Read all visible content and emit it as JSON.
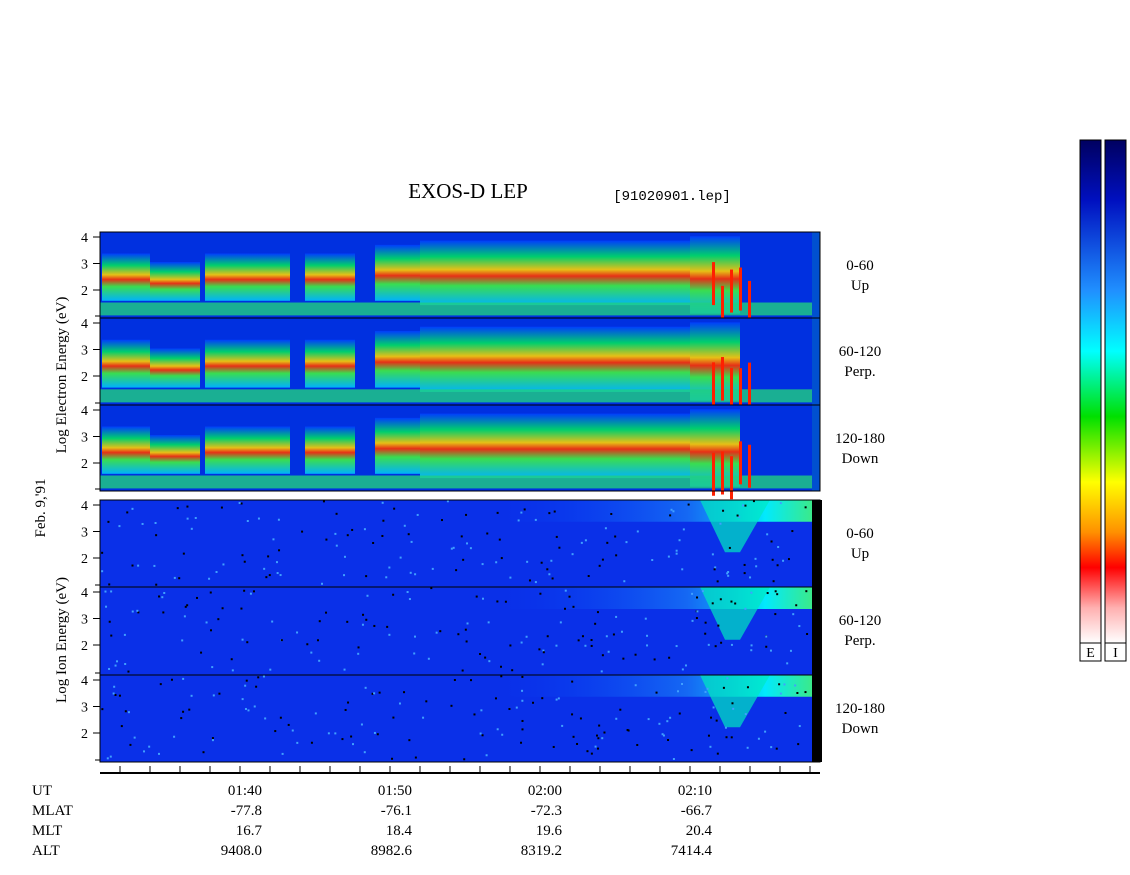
{
  "title": "EXOS-D LEP",
  "file": "[91020901.lep]",
  "date_label": "Feb. 9,'91",
  "electron_axis_label": "Log Electron Energy (eV)",
  "ion_axis_label": "Log Ion Energy (eV)",
  "panels": [
    {
      "species": "electron",
      "yticks": [
        "4",
        "3",
        "2"
      ],
      "angle": "0-60",
      "direction": "Up"
    },
    {
      "species": "electron",
      "yticks": [
        "4",
        "3",
        "2"
      ],
      "angle": "60-120",
      "direction": "Perp."
    },
    {
      "species": "electron",
      "yticks": [
        "4",
        "3",
        "2"
      ],
      "angle": "120-180",
      "direction": "Down"
    },
    {
      "species": "ion",
      "yticks": [
        "4",
        "3",
        "2"
      ],
      "angle": "0-60",
      "direction": "Up"
    },
    {
      "species": "ion",
      "yticks": [
        "4",
        "3",
        "2"
      ],
      "angle": "60-120",
      "direction": "Perp."
    },
    {
      "species": "ion",
      "yticks": [
        "4",
        "3",
        "2"
      ],
      "angle": "120-180",
      "direction": "Down"
    }
  ],
  "time_axis": {
    "row_labels": [
      "UT",
      "MLAT",
      "MLT",
      "ALT"
    ],
    "columns": [
      [
        "01:40",
        "-77.8",
        "16.7",
        "9408.0"
      ],
      [
        "01:50",
        "-76.1",
        "18.4",
        "8982.6"
      ],
      [
        "02:00",
        "-72.3",
        "19.6",
        "8319.2"
      ],
      [
        "02:10",
        "-66.7",
        "20.4",
        "7414.4"
      ]
    ]
  },
  "colorbars": [
    "E",
    "I"
  ]
}
